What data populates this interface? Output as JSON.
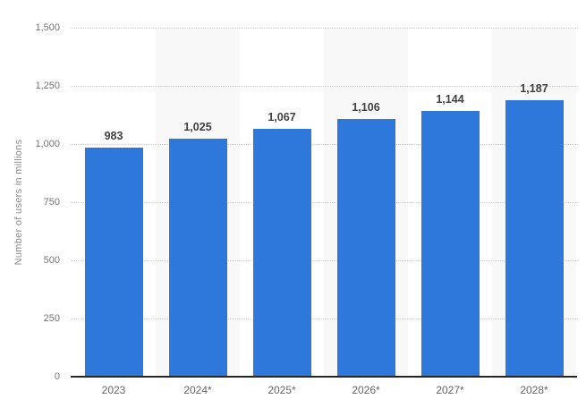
{
  "chart_data": {
    "type": "bar",
    "title": "",
    "xlabel": "",
    "ylabel": "Number of users in millions",
    "categories": [
      "2023",
      "2024*",
      "2025*",
      "2026*",
      "2027*",
      "2028*"
    ],
    "values": [
      983,
      1025,
      1067,
      1106,
      1144,
      1187
    ],
    "value_labels": [
      "983",
      "1,025",
      "1,067",
      "1,106",
      "1,144",
      "1,187"
    ],
    "ylim": [
      0,
      1500
    ],
    "yticks": [
      0,
      250,
      500,
      750,
      1000,
      1250,
      1500
    ],
    "ytick_labels": [
      "0",
      "250",
      "500",
      "750",
      "1,000",
      "1,250",
      "1,500"
    ],
    "grid": "horizontal-dotted",
    "legend": "none",
    "plot_bands": "alternating category columns shaded (2024*, 2026*, 2028*)"
  },
  "style": {
    "bar_color": "#2d78da",
    "band_color": "#f8f8f8",
    "gridline_color": "#cccccc",
    "axis_line_color": "#262626",
    "tick_label_color": "#757575",
    "x_label_color": "#666666",
    "value_label_color": "#404040",
    "background": "#ffffff"
  }
}
